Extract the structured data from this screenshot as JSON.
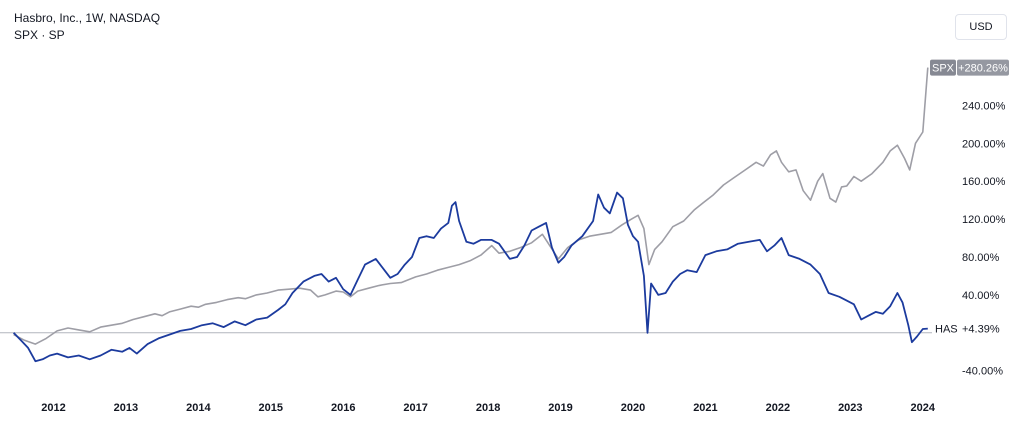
{
  "legend": {
    "line1": "Hasbro, Inc., 1W, NASDAQ",
    "line2": "SPX · SP"
  },
  "currency_button": "USD",
  "colors": {
    "has": "#1c3b9e",
    "spx": "#9e9ea6",
    "baseline": "#b2b5be",
    "axis_text": "#131722"
  },
  "chart_data": {
    "type": "line",
    "x_ticks": [
      "2012",
      "2013",
      "2014",
      "2015",
      "2016",
      "2017",
      "2018",
      "2019",
      "2020",
      "2021",
      "2022",
      "2023",
      "2024"
    ],
    "y_ticks": [
      "240.00%",
      "200.00%",
      "160.00%",
      "120.00%",
      "80.00%",
      "40.00%",
      "-40.00%"
    ],
    "y_tick_values": [
      240,
      200,
      160,
      120,
      80,
      40,
      -40
    ],
    "xlim": [
      2011.4,
      2024.1
    ],
    "ylim": [
      -52,
      288
    ],
    "baseline": 0,
    "series": [
      {
        "name": "SPX",
        "last_label": "+280.26%",
        "points": [
          [
            2011.45,
            -2
          ],
          [
            2011.6,
            -8
          ],
          [
            2011.75,
            -12
          ],
          [
            2011.9,
            -6
          ],
          [
            2012.05,
            2
          ],
          [
            2012.2,
            5
          ],
          [
            2012.35,
            3
          ],
          [
            2012.5,
            1
          ],
          [
            2012.65,
            6
          ],
          [
            2012.8,
            8
          ],
          [
            2012.95,
            10
          ],
          [
            2013.1,
            14
          ],
          [
            2013.25,
            17
          ],
          [
            2013.4,
            20
          ],
          [
            2013.5,
            18
          ],
          [
            2013.6,
            22
          ],
          [
            2013.75,
            25
          ],
          [
            2013.9,
            28
          ],
          [
            2014.0,
            27
          ],
          [
            2014.1,
            30
          ],
          [
            2014.25,
            32
          ],
          [
            2014.4,
            35
          ],
          [
            2014.55,
            37
          ],
          [
            2014.65,
            36
          ],
          [
            2014.8,
            40
          ],
          [
            2014.95,
            42
          ],
          [
            2015.1,
            45
          ],
          [
            2015.25,
            46
          ],
          [
            2015.4,
            47
          ],
          [
            2015.55,
            45
          ],
          [
            2015.65,
            38
          ],
          [
            2015.75,
            40
          ],
          [
            2015.9,
            44
          ],
          [
            2016.0,
            43
          ],
          [
            2016.1,
            38
          ],
          [
            2016.2,
            44
          ],
          [
            2016.35,
            47
          ],
          [
            2016.5,
            50
          ],
          [
            2016.65,
            52
          ],
          [
            2016.8,
            53
          ],
          [
            2016.9,
            56
          ],
          [
            2017.0,
            59
          ],
          [
            2017.15,
            62
          ],
          [
            2017.3,
            66
          ],
          [
            2017.45,
            69
          ],
          [
            2017.6,
            72
          ],
          [
            2017.75,
            76
          ],
          [
            2017.9,
            82
          ],
          [
            2018.05,
            92
          ],
          [
            2018.15,
            84
          ],
          [
            2018.3,
            86
          ],
          [
            2018.45,
            90
          ],
          [
            2018.6,
            95
          ],
          [
            2018.75,
            104
          ],
          [
            2018.85,
            92
          ],
          [
            2018.97,
            78
          ],
          [
            2019.1,
            90
          ],
          [
            2019.25,
            98
          ],
          [
            2019.4,
            102
          ],
          [
            2019.55,
            104
          ],
          [
            2019.7,
            106
          ],
          [
            2019.85,
            114
          ],
          [
            2019.98,
            120
          ],
          [
            2020.07,
            124
          ],
          [
            2020.15,
            110
          ],
          [
            2020.22,
            72
          ],
          [
            2020.3,
            88
          ],
          [
            2020.4,
            96
          ],
          [
            2020.55,
            112
          ],
          [
            2020.7,
            118
          ],
          [
            2020.85,
            130
          ],
          [
            2020.98,
            138
          ],
          [
            2021.1,
            145
          ],
          [
            2021.25,
            156
          ],
          [
            2021.4,
            164
          ],
          [
            2021.55,
            172
          ],
          [
            2021.7,
            180
          ],
          [
            2021.8,
            176
          ],
          [
            2021.9,
            188
          ],
          [
            2021.98,
            192
          ],
          [
            2022.05,
            180
          ],
          [
            2022.15,
            170
          ],
          [
            2022.25,
            172
          ],
          [
            2022.35,
            150
          ],
          [
            2022.45,
            140
          ],
          [
            2022.55,
            160
          ],
          [
            2022.62,
            168
          ],
          [
            2022.72,
            142
          ],
          [
            2022.8,
            138
          ],
          [
            2022.88,
            154
          ],
          [
            2022.95,
            155
          ],
          [
            2023.05,
            165
          ],
          [
            2023.15,
            160
          ],
          [
            2023.3,
            168
          ],
          [
            2023.45,
            180
          ],
          [
            2023.55,
            192
          ],
          [
            2023.65,
            198
          ],
          [
            2023.75,
            184
          ],
          [
            2023.82,
            172
          ],
          [
            2023.9,
            200
          ],
          [
            2024.0,
            212
          ],
          [
            2024.07,
            280
          ]
        ]
      },
      {
        "name": "HAS",
        "last_label": "+4.39%",
        "points": [
          [
            2011.45,
            0
          ],
          [
            2011.55,
            -8
          ],
          [
            2011.65,
            -16
          ],
          [
            2011.75,
            -30
          ],
          [
            2011.85,
            -28
          ],
          [
            2011.95,
            -24
          ],
          [
            2012.05,
            -22
          ],
          [
            2012.2,
            -26
          ],
          [
            2012.35,
            -24
          ],
          [
            2012.5,
            -28
          ],
          [
            2012.65,
            -24
          ],
          [
            2012.8,
            -18
          ],
          [
            2012.95,
            -20
          ],
          [
            2013.05,
            -16
          ],
          [
            2013.15,
            -22
          ],
          [
            2013.3,
            -12
          ],
          [
            2013.45,
            -6
          ],
          [
            2013.6,
            -2
          ],
          [
            2013.75,
            2
          ],
          [
            2013.9,
            4
          ],
          [
            2014.05,
            8
          ],
          [
            2014.2,
            10
          ],
          [
            2014.35,
            6
          ],
          [
            2014.5,
            12
          ],
          [
            2014.65,
            8
          ],
          [
            2014.8,
            14
          ],
          [
            2014.95,
            16
          ],
          [
            2015.1,
            24
          ],
          [
            2015.2,
            30
          ],
          [
            2015.3,
            42
          ],
          [
            2015.45,
            54
          ],
          [
            2015.6,
            60
          ],
          [
            2015.7,
            62
          ],
          [
            2015.8,
            54
          ],
          [
            2015.9,
            58
          ],
          [
            2016.0,
            46
          ],
          [
            2016.1,
            40
          ],
          [
            2016.2,
            56
          ],
          [
            2016.3,
            72
          ],
          [
            2016.45,
            78
          ],
          [
            2016.55,
            68
          ],
          [
            2016.65,
            58
          ],
          [
            2016.75,
            62
          ],
          [
            2016.85,
            72
          ],
          [
            2016.95,
            80
          ],
          [
            2017.05,
            100
          ],
          [
            2017.15,
            102
          ],
          [
            2017.25,
            100
          ],
          [
            2017.35,
            110
          ],
          [
            2017.45,
            116
          ],
          [
            2017.5,
            134
          ],
          [
            2017.55,
            138
          ],
          [
            2017.6,
            118
          ],
          [
            2017.7,
            96
          ],
          [
            2017.8,
            94
          ],
          [
            2017.9,
            98
          ],
          [
            2018.05,
            98
          ],
          [
            2018.15,
            94
          ],
          [
            2018.3,
            78
          ],
          [
            2018.4,
            80
          ],
          [
            2018.5,
            92
          ],
          [
            2018.6,
            108
          ],
          [
            2018.7,
            112
          ],
          [
            2018.8,
            116
          ],
          [
            2018.88,
            90
          ],
          [
            2018.97,
            74
          ],
          [
            2019.05,
            80
          ],
          [
            2019.15,
            92
          ],
          [
            2019.3,
            102
          ],
          [
            2019.45,
            118
          ],
          [
            2019.52,
            146
          ],
          [
            2019.6,
            132
          ],
          [
            2019.68,
            126
          ],
          [
            2019.78,
            148
          ],
          [
            2019.86,
            142
          ],
          [
            2019.93,
            114
          ],
          [
            2020.0,
            102
          ],
          [
            2020.07,
            96
          ],
          [
            2020.15,
            60
          ],
          [
            2020.2,
            0
          ],
          [
            2020.25,
            52
          ],
          [
            2020.35,
            40
          ],
          [
            2020.45,
            42
          ],
          [
            2020.55,
            54
          ],
          [
            2020.65,
            62
          ],
          [
            2020.75,
            66
          ],
          [
            2020.88,
            64
          ],
          [
            2021.0,
            82
          ],
          [
            2021.15,
            86
          ],
          [
            2021.3,
            88
          ],
          [
            2021.45,
            94
          ],
          [
            2021.6,
            96
          ],
          [
            2021.75,
            98
          ],
          [
            2021.85,
            86
          ],
          [
            2021.95,
            92
          ],
          [
            2022.05,
            100
          ],
          [
            2022.15,
            82
          ],
          [
            2022.3,
            78
          ],
          [
            2022.45,
            72
          ],
          [
            2022.58,
            62
          ],
          [
            2022.7,
            42
          ],
          [
            2022.85,
            38
          ],
          [
            2022.95,
            34
          ],
          [
            2023.05,
            30
          ],
          [
            2023.15,
            14
          ],
          [
            2023.25,
            18
          ],
          [
            2023.35,
            22
          ],
          [
            2023.45,
            20
          ],
          [
            2023.55,
            28
          ],
          [
            2023.65,
            42
          ],
          [
            2023.72,
            32
          ],
          [
            2023.8,
            8
          ],
          [
            2023.85,
            -10
          ],
          [
            2023.92,
            -4
          ],
          [
            2024.0,
            4
          ],
          [
            2024.07,
            4.39
          ]
        ]
      }
    ]
  }
}
